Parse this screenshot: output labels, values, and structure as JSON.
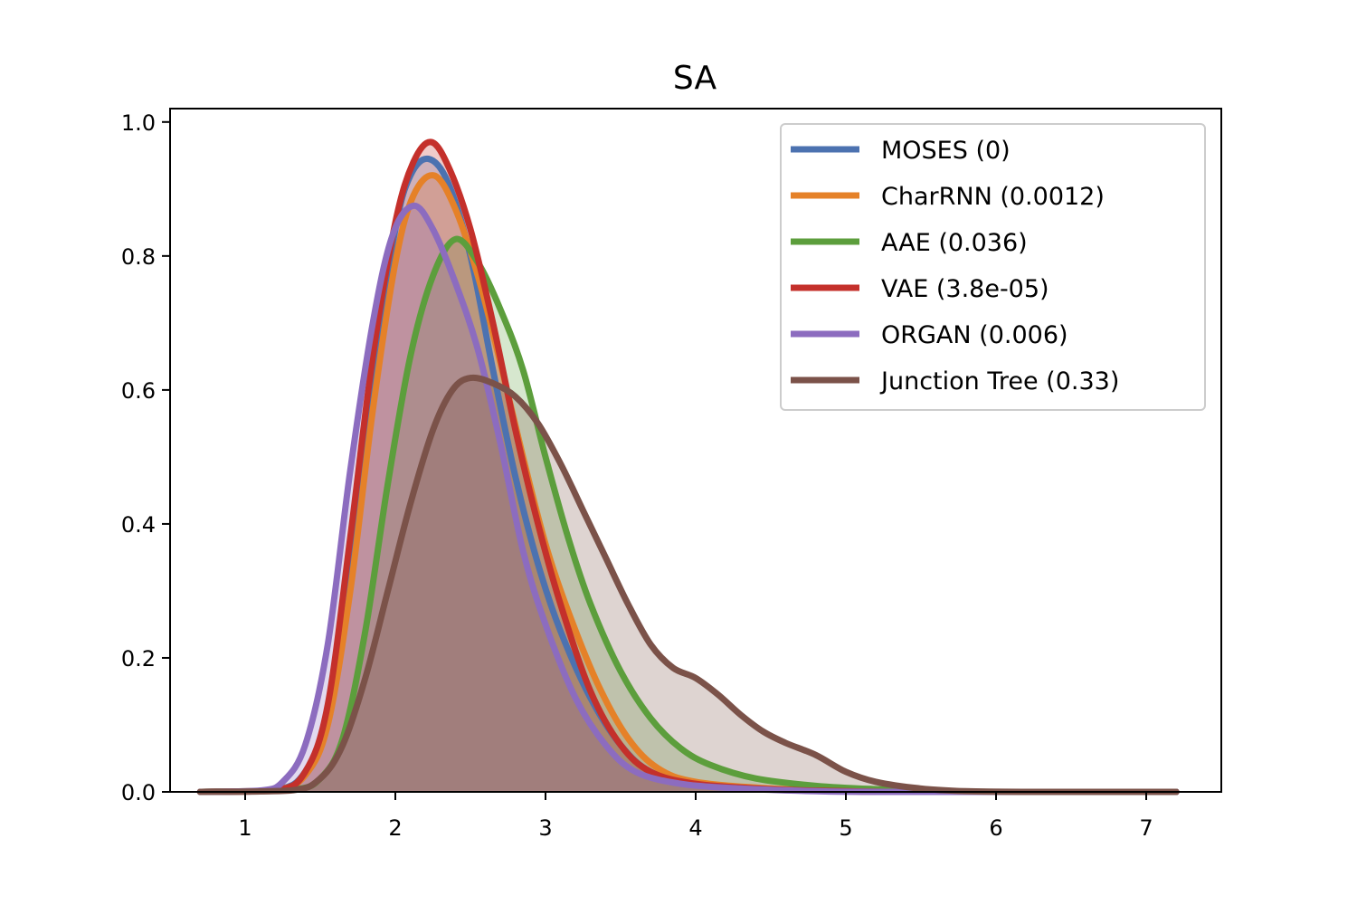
{
  "chart_data": {
    "type": "area",
    "title": "SA",
    "xlabel": "",
    "ylabel": "",
    "xlim": [
      0.5,
      7.5
    ],
    "ylim": [
      0.0,
      1.02
    ],
    "xticks": [
      1,
      2,
      3,
      4,
      5,
      6,
      7
    ],
    "yticks": [
      0.0,
      0.2,
      0.4,
      0.6,
      0.8,
      1.0
    ],
    "xtick_labels": [
      "1",
      "2",
      "3",
      "4",
      "5",
      "6",
      "7"
    ],
    "ytick_labels": [
      "0.0",
      "0.2",
      "0.4",
      "0.6",
      "0.8",
      "1.0"
    ],
    "legend_position": "top-right",
    "series": [
      {
        "name": "MOSES (0)",
        "color": "#4c72b0",
        "points": [
          [
            0.7,
            0
          ],
          [
            1.2,
            0.003
          ],
          [
            1.4,
            0.03
          ],
          [
            1.55,
            0.12
          ],
          [
            1.7,
            0.35
          ],
          [
            1.85,
            0.62
          ],
          [
            2.0,
            0.84
          ],
          [
            2.1,
            0.92
          ],
          [
            2.22,
            0.945
          ],
          [
            2.35,
            0.91
          ],
          [
            2.5,
            0.8
          ],
          [
            2.65,
            0.63
          ],
          [
            2.8,
            0.47
          ],
          [
            2.95,
            0.34
          ],
          [
            3.1,
            0.24
          ],
          [
            3.3,
            0.14
          ],
          [
            3.5,
            0.07
          ],
          [
            3.7,
            0.03
          ],
          [
            4.0,
            0.012
          ],
          [
            4.5,
            0.004
          ],
          [
            5.0,
            0.001
          ],
          [
            5.5,
            0
          ],
          [
            7.2,
            0
          ]
        ]
      },
      {
        "name": "CharRNN (0.0012)",
        "color": "#e58128",
        "points": [
          [
            0.7,
            0
          ],
          [
            1.2,
            0.003
          ],
          [
            1.4,
            0.025
          ],
          [
            1.55,
            0.1
          ],
          [
            1.7,
            0.3
          ],
          [
            1.85,
            0.57
          ],
          [
            2.0,
            0.79
          ],
          [
            2.12,
            0.89
          ],
          [
            2.26,
            0.92
          ],
          [
            2.4,
            0.87
          ],
          [
            2.55,
            0.77
          ],
          [
            2.7,
            0.64
          ],
          [
            2.85,
            0.5
          ],
          [
            3.0,
            0.37
          ],
          [
            3.15,
            0.27
          ],
          [
            3.35,
            0.16
          ],
          [
            3.55,
            0.08
          ],
          [
            3.75,
            0.035
          ],
          [
            4.0,
            0.015
          ],
          [
            4.5,
            0.005
          ],
          [
            5.0,
            0.001
          ],
          [
            5.5,
            0
          ],
          [
            7.2,
            0
          ]
        ]
      },
      {
        "name": "AAE (0.036)",
        "color": "#5c9e3c",
        "points": [
          [
            0.7,
            0
          ],
          [
            1.3,
            0.003
          ],
          [
            1.5,
            0.02
          ],
          [
            1.65,
            0.08
          ],
          [
            1.8,
            0.24
          ],
          [
            1.95,
            0.46
          ],
          [
            2.1,
            0.65
          ],
          [
            2.25,
            0.77
          ],
          [
            2.4,
            0.825
          ],
          [
            2.55,
            0.79
          ],
          [
            2.7,
            0.72
          ],
          [
            2.85,
            0.63
          ],
          [
            3.0,
            0.5
          ],
          [
            3.15,
            0.38
          ],
          [
            3.3,
            0.28
          ],
          [
            3.5,
            0.18
          ],
          [
            3.7,
            0.11
          ],
          [
            3.9,
            0.065
          ],
          [
            4.1,
            0.04
          ],
          [
            4.4,
            0.02
          ],
          [
            4.8,
            0.009
          ],
          [
            5.2,
            0.004
          ],
          [
            5.6,
            0.001
          ],
          [
            6.0,
            0
          ],
          [
            7.2,
            0
          ]
        ]
      },
      {
        "name": "VAE (3.8e-05)",
        "color": "#c4302b",
        "points": [
          [
            0.7,
            0
          ],
          [
            1.2,
            0.002
          ],
          [
            1.4,
            0.03
          ],
          [
            1.55,
            0.13
          ],
          [
            1.7,
            0.38
          ],
          [
            1.85,
            0.65
          ],
          [
            2.0,
            0.85
          ],
          [
            2.12,
            0.94
          ],
          [
            2.24,
            0.97
          ],
          [
            2.36,
            0.93
          ],
          [
            2.5,
            0.84
          ],
          [
            2.65,
            0.7
          ],
          [
            2.8,
            0.54
          ],
          [
            2.95,
            0.4
          ],
          [
            3.1,
            0.28
          ],
          [
            3.3,
            0.15
          ],
          [
            3.5,
            0.07
          ],
          [
            3.7,
            0.03
          ],
          [
            4.0,
            0.012
          ],
          [
            4.5,
            0.004
          ],
          [
            5.0,
            0.001
          ],
          [
            5.5,
            0
          ],
          [
            7.2,
            0
          ]
        ]
      },
      {
        "name": "ORGAN (0.006)",
        "color": "#8c6cbf",
        "points": [
          [
            0.7,
            0
          ],
          [
            1.1,
            0.002
          ],
          [
            1.25,
            0.015
          ],
          [
            1.4,
            0.07
          ],
          [
            1.55,
            0.22
          ],
          [
            1.7,
            0.48
          ],
          [
            1.85,
            0.7
          ],
          [
            1.98,
            0.83
          ],
          [
            2.12,
            0.875
          ],
          [
            2.25,
            0.84
          ],
          [
            2.4,
            0.76
          ],
          [
            2.55,
            0.66
          ],
          [
            2.7,
            0.52
          ],
          [
            2.85,
            0.36
          ],
          [
            3.0,
            0.25
          ],
          [
            3.2,
            0.14
          ],
          [
            3.4,
            0.07
          ],
          [
            3.6,
            0.03
          ],
          [
            3.9,
            0.012
          ],
          [
            4.3,
            0.005
          ],
          [
            4.8,
            0.001
          ],
          [
            5.3,
            0
          ],
          [
            7.2,
            0
          ]
        ]
      },
      {
        "name": "Junction Tree (0.33)",
        "color": "#7b5249",
        "points": [
          [
            0.7,
            0
          ],
          [
            1.3,
            0.002
          ],
          [
            1.5,
            0.02
          ],
          [
            1.65,
            0.07
          ],
          [
            1.8,
            0.17
          ],
          [
            1.95,
            0.3
          ],
          [
            2.1,
            0.43
          ],
          [
            2.25,
            0.54
          ],
          [
            2.38,
            0.6
          ],
          [
            2.5,
            0.618
          ],
          [
            2.65,
            0.61
          ],
          [
            2.8,
            0.59
          ],
          [
            2.95,
            0.55
          ],
          [
            3.1,
            0.49
          ],
          [
            3.25,
            0.42
          ],
          [
            3.4,
            0.35
          ],
          [
            3.55,
            0.28
          ],
          [
            3.7,
            0.22
          ],
          [
            3.85,
            0.185
          ],
          [
            4.0,
            0.17
          ],
          [
            4.15,
            0.145
          ],
          [
            4.3,
            0.115
          ],
          [
            4.45,
            0.09
          ],
          [
            4.6,
            0.073
          ],
          [
            4.8,
            0.055
          ],
          [
            5.0,
            0.03
          ],
          [
            5.2,
            0.015
          ],
          [
            5.5,
            0.005
          ],
          [
            5.8,
            0.001
          ],
          [
            6.2,
            0
          ],
          [
            7.2,
            0
          ]
        ]
      }
    ]
  }
}
